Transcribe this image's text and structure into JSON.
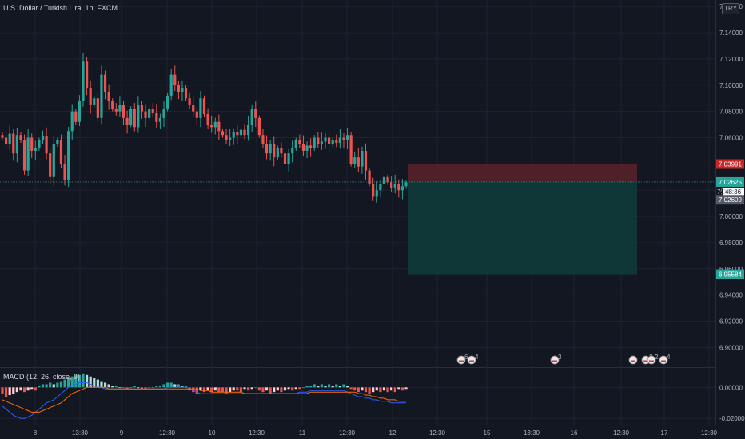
{
  "header": {
    "symbol_title": "U.S. Dollar / Turkish Lira, 1h, FXCM",
    "currency_badge": "TRY"
  },
  "macd_header": "MACD (12, 26, close, 9)",
  "colors": {
    "background": "#131722",
    "grid": "#1f2330",
    "bull": "#26a69a",
    "bear": "#ef5350",
    "stop_zone": "#5b2228",
    "target_zone": "#0f3b3b",
    "macd_line": "#2962ff",
    "signal_line": "#ff6d00"
  },
  "chart_data": [
    {
      "type": "candlestick",
      "title": "U.S. Dollar / Turkish Lira, 1h, FXCM",
      "y_ticks": [
        "7.16000",
        "7.14000",
        "7.12000",
        "7.10000",
        "7.08000",
        "7.06000",
        "7.04000",
        "7.02000",
        "7.00000",
        "6.98000",
        "6.96000",
        "6.94000",
        "6.92000",
        "6.90000"
      ],
      "x_ticks": [
        "8",
        "13:30",
        "9",
        "12:30",
        "10",
        "12:30",
        "11",
        "12:30",
        "12",
        "12:30",
        "15",
        "13:30",
        "16",
        "12:30",
        "17",
        "12:30"
      ],
      "ylim": [
        6.885,
        7.165
      ],
      "closes": [
        7.06,
        7.055,
        7.063,
        7.048,
        7.062,
        7.058,
        7.035,
        7.06,
        7.05,
        7.052,
        7.058,
        7.061,
        7.048,
        7.03,
        7.055,
        7.058,
        7.04,
        7.028,
        7.065,
        7.08,
        7.072,
        7.088,
        7.118,
        7.098,
        7.085,
        7.09,
        7.075,
        7.108,
        7.095,
        7.088,
        7.082,
        7.08,
        7.085,
        7.075,
        7.07,
        7.082,
        7.068,
        7.085,
        7.08,
        7.075,
        7.082,
        7.079,
        7.072,
        7.075,
        7.082,
        7.092,
        7.108,
        7.1,
        7.095,
        7.098,
        7.09,
        7.085,
        7.08,
        7.075,
        7.09,
        7.078,
        7.07,
        7.068,
        7.072,
        7.065,
        7.062,
        7.058,
        7.06,
        7.064,
        7.062,
        7.066,
        7.062,
        7.07,
        7.082,
        7.075,
        7.062,
        7.055,
        7.048,
        7.055,
        7.045,
        7.052,
        7.048,
        7.04,
        7.048,
        7.052,
        7.058,
        7.055,
        7.05,
        7.054,
        7.052,
        7.06,
        7.055,
        7.057,
        7.06,
        7.055,
        7.058,
        7.056,
        7.06,
        7.058,
        7.062,
        7.04,
        7.045,
        7.038,
        7.05,
        7.035,
        7.025,
        7.015,
        7.02,
        7.025,
        7.03,
        7.026,
        7.022,
        7.025,
        7.02,
        7.023,
        7.026
      ],
      "last_price": "7.02625",
      "bar_countdown": "48:36",
      "position": {
        "stop_price": "7.03991",
        "entry_price": "7.02609",
        "target_price": "6.95584",
        "entry_label": "7.02",
        "stop": 7.03991,
        "entry": 7.02609,
        "target": 6.95584
      },
      "event_markers": [
        {
          "count": "6"
        },
        {
          "count": "4"
        },
        {
          "count": "3"
        },
        {
          "count": ""
        },
        {
          "count": "2"
        },
        {
          "count": "2"
        },
        {
          "count": "4"
        }
      ]
    },
    {
      "type": "macd",
      "title": "MACD (12, 26, close, 9)",
      "y_ticks": [
        "0.00000",
        "-0.02000"
      ],
      "ylim": [
        -0.024,
        0.012
      ],
      "histogram": [
        -0.004,
        -0.006,
        -0.005,
        -0.004,
        -0.003,
        -0.002,
        -0.003,
        -0.002,
        -0.001,
        -0.002,
        0.001,
        0.002,
        0.002,
        0.003,
        0.002,
        0.003,
        0.004,
        0.005,
        0.006,
        0.007,
        0.008,
        0.008,
        0.009,
        0.008,
        0.007,
        0.006,
        0.005,
        0.004,
        0.003,
        0.002,
        0.001,
        0.001,
        0.0,
        0.0,
        -0.001,
        0.0,
        0.001,
        0.0,
        -0.001,
        -0.001,
        0.0,
        0.0,
        0.001,
        0.001,
        0.002,
        0.003,
        0.003,
        0.002,
        0.002,
        0.001,
        0.001,
        -0.002,
        -0.003,
        -0.004,
        -0.002,
        -0.003,
        -0.002,
        -0.003,
        -0.002,
        -0.003,
        -0.003,
        -0.004,
        -0.003,
        -0.002,
        -0.002,
        -0.003,
        -0.001,
        -0.002,
        -0.001,
        0.0,
        -0.002,
        -0.003,
        -0.002,
        -0.004,
        -0.003,
        -0.002,
        -0.003,
        -0.002,
        -0.001,
        -0.002,
        -0.001,
        -0.001,
        0.0,
        0.001,
        0.001,
        0.002,
        0.001,
        0.002,
        0.001,
        0.002,
        0.001,
        0.002,
        0.001,
        0.002,
        0.001,
        -0.001,
        -0.002,
        -0.003,
        -0.002,
        -0.003,
        -0.004,
        -0.003,
        -0.002,
        -0.003,
        -0.002,
        -0.003,
        -0.002,
        -0.003,
        -0.001,
        -0.002,
        -0.001
      ],
      "macd_line": [
        -0.012,
        -0.014,
        -0.016,
        -0.018,
        -0.019,
        -0.02,
        -0.02,
        -0.019,
        -0.018,
        -0.016,
        -0.014,
        -0.012,
        -0.01,
        -0.009,
        -0.008,
        -0.006,
        -0.004,
        -0.002,
        0.0,
        0.001,
        0.002,
        0.003,
        0.003,
        0.003,
        0.002,
        0.001,
        0.0,
        0.0,
        -0.001,
        -0.001,
        -0.001,
        -0.001,
        -0.001,
        -0.001,
        -0.001,
        -0.001,
        -0.001,
        -0.001,
        -0.001,
        -0.001,
        -0.001,
        -0.001,
        -0.001,
        -0.001,
        -0.001,
        0.0,
        0.0,
        0.0,
        0.0,
        0.0,
        0.0,
        -0.001,
        -0.002,
        -0.003,
        -0.004,
        -0.004,
        -0.004,
        -0.004,
        -0.004,
        -0.004,
        -0.004,
        -0.004,
        -0.004,
        -0.004,
        -0.004,
        -0.004,
        -0.004,
        -0.004,
        -0.004,
        -0.004,
        -0.004,
        -0.004,
        -0.004,
        -0.004,
        -0.004,
        -0.004,
        -0.004,
        -0.004,
        -0.004,
        -0.004,
        -0.004,
        -0.003,
        -0.003,
        -0.003,
        -0.002,
        -0.002,
        -0.002,
        -0.002,
        -0.002,
        -0.002,
        -0.002,
        -0.002,
        -0.002,
        -0.002,
        -0.003,
        -0.004,
        -0.005,
        -0.006,
        -0.006,
        -0.007,
        -0.007,
        -0.008,
        -0.008,
        -0.009,
        -0.009,
        -0.009,
        -0.01,
        -0.01,
        -0.01,
        -0.01,
        -0.01
      ],
      "signal_line": [
        -0.008,
        -0.009,
        -0.01,
        -0.011,
        -0.012,
        -0.013,
        -0.014,
        -0.015,
        -0.016,
        -0.016,
        -0.016,
        -0.015,
        -0.014,
        -0.013,
        -0.012,
        -0.011,
        -0.01,
        -0.008,
        -0.006,
        -0.004,
        -0.003,
        -0.002,
        -0.001,
        0.0,
        0.0,
        0.0,
        0.0,
        0.0,
        0.0,
        -0.001,
        -0.001,
        -0.001,
        -0.001,
        -0.001,
        -0.001,
        -0.001,
        -0.001,
        -0.001,
        -0.001,
        -0.001,
        -0.001,
        -0.001,
        -0.001,
        -0.001,
        -0.001,
        -0.001,
        -0.001,
        -0.001,
        -0.001,
        -0.001,
        -0.001,
        -0.001,
        -0.001,
        -0.001,
        -0.002,
        -0.002,
        -0.002,
        -0.003,
        -0.003,
        -0.003,
        -0.003,
        -0.003,
        -0.003,
        -0.003,
        -0.003,
        -0.003,
        -0.004,
        -0.004,
        -0.004,
        -0.004,
        -0.004,
        -0.004,
        -0.004,
        -0.004,
        -0.004,
        -0.004,
        -0.004,
        -0.004,
        -0.004,
        -0.004,
        -0.004,
        -0.004,
        -0.004,
        -0.004,
        -0.003,
        -0.003,
        -0.003,
        -0.003,
        -0.003,
        -0.003,
        -0.003,
        -0.003,
        -0.003,
        -0.003,
        -0.003,
        -0.003,
        -0.003,
        -0.004,
        -0.004,
        -0.005,
        -0.005,
        -0.006,
        -0.006,
        -0.007,
        -0.007,
        -0.008,
        -0.008,
        -0.008,
        -0.009,
        -0.009,
        -0.009
      ]
    }
  ]
}
